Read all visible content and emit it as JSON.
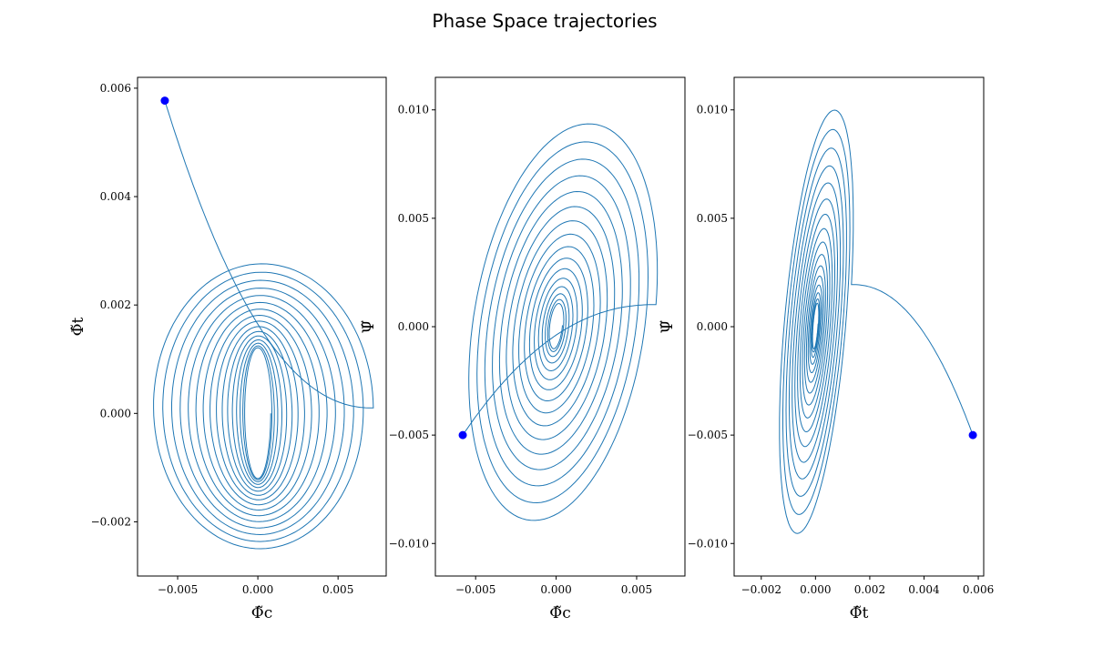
{
  "figure": {
    "title": "Phase Space trajectories"
  },
  "colors": {
    "line": "#1f77b4",
    "marker": "#0000ff"
  },
  "chart_data": [
    {
      "type": "line",
      "xlabel": "Φ̃c",
      "ylabel": "Φ̃t",
      "xlim": [
        -0.0075,
        0.008
      ],
      "ylim": [
        -0.003,
        0.0062
      ],
      "xticks": [
        -0.005,
        0.0,
        0.005
      ],
      "xtick_labels": [
        "−0.005",
        "0.000",
        "0.005"
      ],
      "yticks": [
        -0.002,
        0.0,
        0.002,
        0.004,
        0.006
      ],
      "ytick_labels": [
        "−0.002",
        "0.000",
        "0.002",
        "0.004",
        "0.006"
      ],
      "grid": false,
      "start_point": [
        -0.0058,
        0.00577
      ],
      "trajectory": {
        "shape": "damped spiral in phase space; starts at marker, falls steeply, then spirals into origin",
        "outer_loop_extent": {
          "x": [
            -0.0068,
            0.0073
          ],
          "y": [
            -0.0026,
            0.0028
          ]
        },
        "num_loops": 16
      }
    },
    {
      "type": "line",
      "xlabel": "Φ̃c",
      "ylabel": "Ψ̃",
      "xlim": [
        -0.0075,
        0.008
      ],
      "ylim": [
        -0.0115,
        0.0115
      ],
      "xticks": [
        -0.005,
        0.0,
        0.005
      ],
      "xtick_labels": [
        "−0.005",
        "0.000",
        "0.005"
      ],
      "yticks": [
        -0.01,
        -0.005,
        0.0,
        0.005,
        0.01
      ],
      "ytick_labels": [
        "−0.010",
        "−0.005",
        "0.000",
        "0.005",
        "0.010"
      ],
      "grid": false,
      "start_point": [
        -0.0058,
        -0.005
      ],
      "trajectory": {
        "shape": "tilted elliptical spiral converging to origin",
        "outer_loop_extent": {
          "x": [
            -0.0067,
            0.0073
          ],
          "y": [
            -0.0105,
            0.0105
          ]
        },
        "num_loops": 16
      }
    },
    {
      "type": "line",
      "xlabel": "Φ̃t",
      "ylabel": "Ψ̃",
      "xlim": [
        -0.003,
        0.0062
      ],
      "ylim": [
        -0.0115,
        0.0115
      ],
      "xticks": [
        -0.002,
        0.0,
        0.002,
        0.004,
        0.006
      ],
      "xtick_labels": [
        "−0.002",
        "0.000",
        "0.002",
        "0.004",
        "0.006"
      ],
      "yticks": [
        -0.01,
        -0.005,
        0.0,
        0.005,
        0.01
      ],
      "ytick_labels": [
        "−0.010",
        "−0.005",
        "0.000",
        "0.005",
        "0.010"
      ],
      "grid": false,
      "start_point": [
        0.0058,
        -0.005
      ],
      "trajectory": {
        "shape": "narrow, strongly tilted elliptical spiral converging to origin",
        "outer_loop_extent": {
          "x": [
            -0.0026,
            0.0027
          ],
          "y": [
            -0.0105,
            0.0105
          ]
        },
        "num_loops": 16
      }
    }
  ]
}
